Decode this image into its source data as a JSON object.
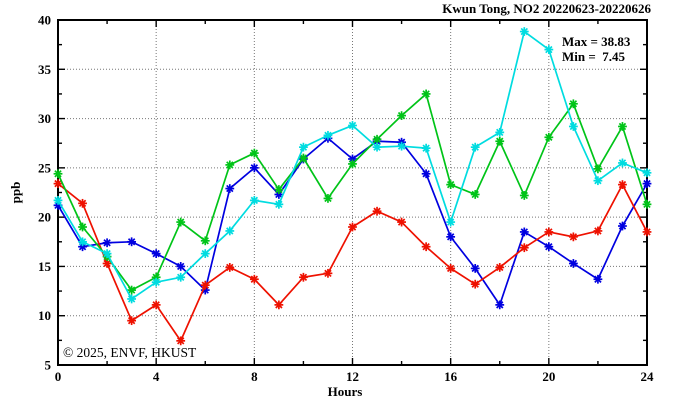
{
  "chart_data": {
    "type": "line",
    "title": "Kwun Tong, NO2 20220623-20220626",
    "xlabel": "Hours",
    "ylabel": "ppb",
    "xlim": [
      0,
      24
    ],
    "ylim": [
      5,
      40
    ],
    "x_major_ticks": [
      0,
      4,
      8,
      12,
      16,
      20,
      24
    ],
    "x_minor_ticks": [
      2,
      6,
      10,
      14,
      18,
      22
    ],
    "y_major_ticks": [
      5,
      10,
      15,
      20,
      25,
      30,
      35,
      40
    ],
    "y_minor_ticks": [
      7.5,
      12.5,
      17.5,
      22.5,
      27.5,
      32.5,
      37.5
    ],
    "grid": "dotted-at-major-ticks",
    "legend_position": "none",
    "annotations": {
      "max_label": "Max = 38.83",
      "min_label": "Min =  7.45",
      "max_value": 38.83,
      "min_value": 7.45
    },
    "watermark": "© 2025, ENVF, HKUST",
    "x": [
      0,
      1,
      2,
      3,
      4,
      5,
      6,
      7,
      8,
      9,
      10,
      11,
      12,
      13,
      14,
      15,
      16,
      17,
      18,
      19,
      20,
      21,
      22,
      23,
      24
    ],
    "series": [
      {
        "name": "series-blue",
        "color": "#0000e0",
        "marker": "asterisk",
        "values": [
          21.2,
          17.0,
          17.4,
          17.5,
          16.3,
          15.0,
          12.6,
          22.9,
          25.0,
          22.3,
          25.9,
          28.0,
          25.9,
          27.7,
          27.6,
          24.4,
          18.0,
          14.8,
          11.1,
          18.5,
          17.0,
          15.3,
          13.7,
          19.1,
          23.4
        ]
      },
      {
        "name": "series-red",
        "color": "#ee1100",
        "marker": "asterisk",
        "values": [
          23.4,
          21.4,
          15.3,
          9.5,
          11.1,
          7.45,
          13.1,
          14.9,
          13.7,
          11.1,
          13.9,
          14.3,
          19.0,
          20.6,
          19.5,
          17.0,
          14.8,
          13.2,
          14.9,
          16.9,
          18.5,
          18.0,
          18.6,
          23.3,
          18.5
        ]
      },
      {
        "name": "series-green",
        "color": "#00c418",
        "marker": "asterisk",
        "values": [
          24.4,
          19.0,
          16.0,
          12.6,
          13.9,
          19.5,
          17.6,
          25.3,
          26.5,
          22.8,
          26.0,
          21.9,
          25.4,
          27.9,
          30.3,
          32.5,
          23.3,
          22.3,
          27.7,
          22.2,
          28.1,
          31.5,
          24.9,
          29.2,
          21.3
        ]
      },
      {
        "name": "series-cyan",
        "color": "#00dce0",
        "marker": "asterisk",
        "values": [
          21.7,
          17.5,
          16.3,
          11.7,
          13.4,
          13.9,
          16.3,
          18.6,
          21.7,
          21.3,
          27.1,
          28.3,
          29.3,
          27.1,
          27.2,
          27.0,
          19.5,
          27.1,
          28.6,
          38.83,
          37.0,
          29.2,
          23.7,
          25.5,
          24.5
        ]
      }
    ]
  }
}
